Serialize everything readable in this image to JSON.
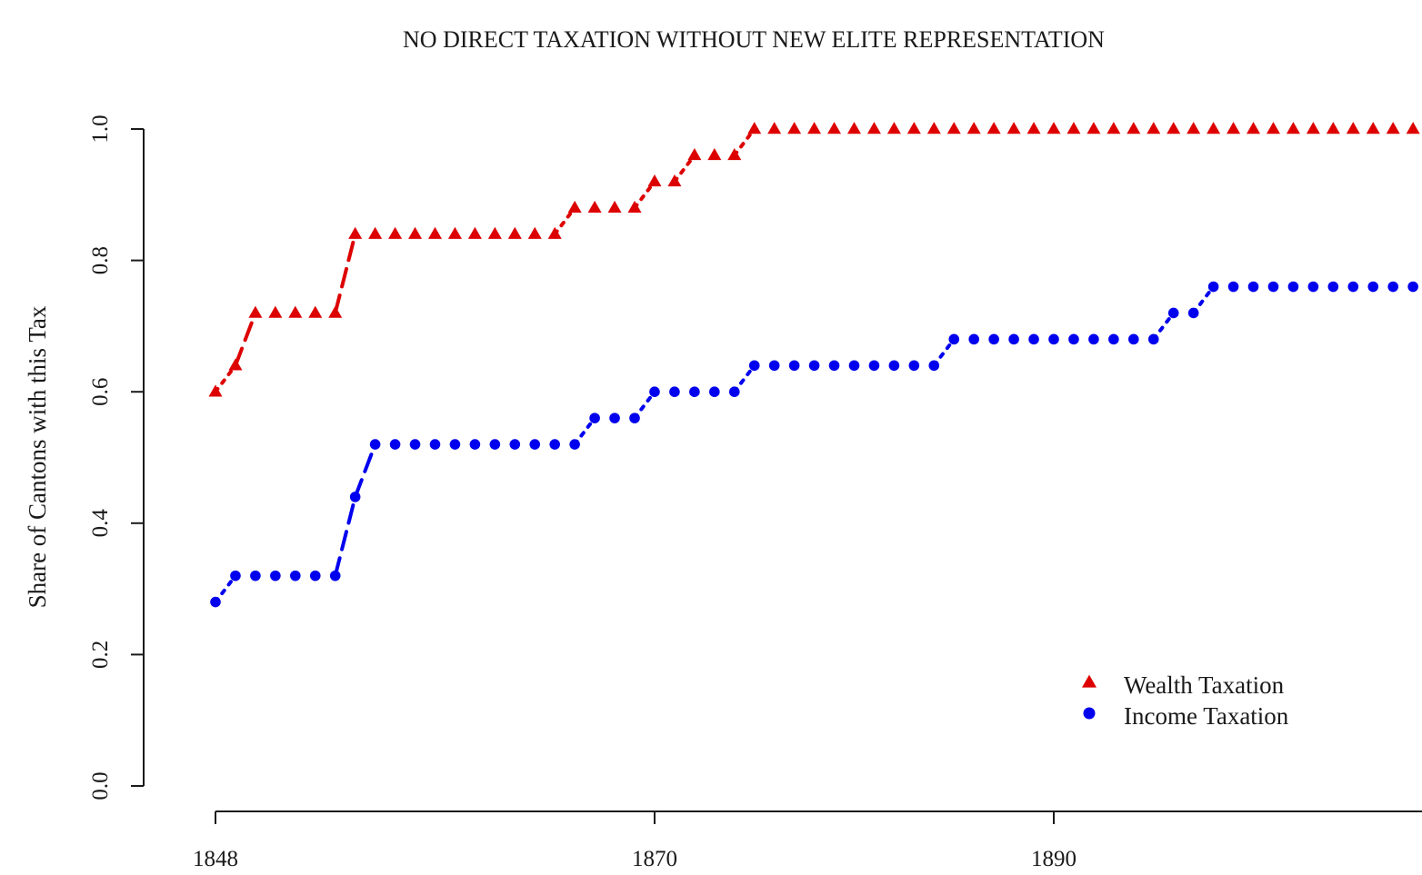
{
  "chart_data": {
    "type": "line",
    "title": "NO DIRECT TAXATION WITHOUT NEW ELITE REPRESENTATION",
    "xlabel": "",
    "ylabel": "Share of Cantons with this Tax",
    "xlim": [
      1844.4,
      1908.5
    ],
    "ylim": [
      0.0,
      1.0
    ],
    "x_ticks": [
      1848,
      1870,
      1890
    ],
    "x_tick_labels": [
      "1848",
      "1870",
      "1890"
    ],
    "y_ticks": [
      0.0,
      0.2,
      0.4,
      0.6,
      0.8,
      1.0
    ],
    "y_tick_labels": [
      "0.0",
      "0.2",
      "0.4",
      "0.6",
      "0.8",
      "1.0"
    ],
    "grid": false,
    "legend_position": "bottom-right",
    "x": [
      1848,
      1849,
      1850,
      1851,
      1852,
      1853,
      1854,
      1855,
      1856,
      1857,
      1858,
      1859,
      1860,
      1861,
      1862,
      1863,
      1864,
      1865,
      1866,
      1867,
      1868,
      1869,
      1870,
      1871,
      1872,
      1873,
      1874,
      1875,
      1876,
      1877,
      1878,
      1879,
      1880,
      1881,
      1882,
      1883,
      1884,
      1885,
      1886,
      1887,
      1888,
      1889,
      1890,
      1891,
      1892,
      1893,
      1894,
      1895,
      1896,
      1897,
      1898,
      1899,
      1900,
      1901,
      1902,
      1903,
      1904,
      1905,
      1906,
      1907,
      1908
    ],
    "series": [
      {
        "name": "Wealth Taxation",
        "color": "#dd0000",
        "marker": "triangle",
        "values": [
          0.6,
          0.64,
          0.72,
          0.72,
          0.72,
          0.72,
          0.72,
          0.84,
          0.84,
          0.84,
          0.84,
          0.84,
          0.84,
          0.84,
          0.84,
          0.84,
          0.84,
          0.84,
          0.88,
          0.88,
          0.88,
          0.88,
          0.92,
          0.92,
          0.96,
          0.96,
          0.96,
          1.0,
          1.0,
          1.0,
          1.0,
          1.0,
          1.0,
          1.0,
          1.0,
          1.0,
          1.0,
          1.0,
          1.0,
          1.0,
          1.0,
          1.0,
          1.0,
          1.0,
          1.0,
          1.0,
          1.0,
          1.0,
          1.0,
          1.0,
          1.0,
          1.0,
          1.0,
          1.0,
          1.0,
          1.0,
          1.0,
          1.0,
          1.0,
          1.0,
          1.0
        ]
      },
      {
        "name": "Income Taxation",
        "color": "#0000ee",
        "marker": "circle",
        "values": [
          0.28,
          0.32,
          0.32,
          0.32,
          0.32,
          0.32,
          0.32,
          0.44,
          0.52,
          0.52,
          0.52,
          0.52,
          0.52,
          0.52,
          0.52,
          0.52,
          0.52,
          0.52,
          0.52,
          0.56,
          0.56,
          0.56,
          0.6,
          0.6,
          0.6,
          0.6,
          0.6,
          0.64,
          0.64,
          0.64,
          0.64,
          0.64,
          0.64,
          0.64,
          0.64,
          0.64,
          0.64,
          0.68,
          0.68,
          0.68,
          0.68,
          0.68,
          0.68,
          0.68,
          0.68,
          0.68,
          0.68,
          0.68,
          0.72,
          0.72,
          0.76,
          0.76,
          0.76,
          0.76,
          0.76,
          0.76,
          0.76,
          0.76,
          0.76,
          0.76,
          0.76
        ]
      }
    ]
  }
}
